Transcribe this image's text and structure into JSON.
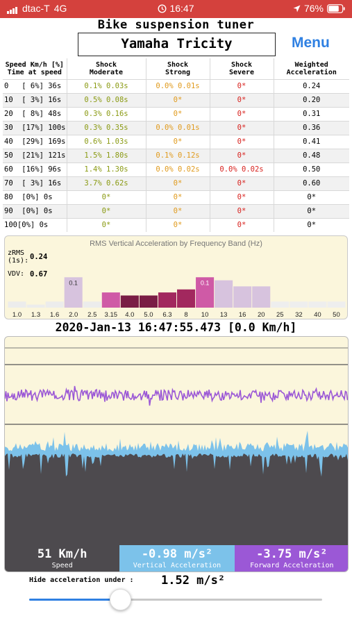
{
  "status_bar": {
    "carrier": "dtac-T",
    "network": "4G",
    "time": "16:47",
    "battery": "76%",
    "icons": [
      "signal-icon",
      "alarm-clock-icon",
      "location-arrow-icon",
      "battery-icon"
    ]
  },
  "header": {
    "title": "Bike suspension tuner",
    "model": "Yamaha Tricity",
    "menu_label": "Menu"
  },
  "table": {
    "headers": [
      {
        "line1": "Speed Km/h [%]",
        "line2": "Time at speed"
      },
      {
        "line1": "Shock",
        "line2": "Moderate"
      },
      {
        "line1": "Shock",
        "line2": "Strong"
      },
      {
        "line1": "Shock",
        "line2": "Severe"
      },
      {
        "line1": "Weighted",
        "line2": "Acceleration"
      }
    ],
    "rows": [
      {
        "speed": "0   [ 6%] 36s",
        "moderate": "0.1% 0.03s",
        "strong": "0.0% 0.01s",
        "severe": "0*",
        "weighted": "0.24"
      },
      {
        "speed": "10  [ 3%] 16s",
        "moderate": "0.5% 0.08s",
        "strong": "0*",
        "severe": "0*",
        "weighted": "0.20"
      },
      {
        "speed": "20  [ 8%] 48s",
        "moderate": "0.3% 0.16s",
        "strong": "0*",
        "severe": "0*",
        "weighted": "0.31"
      },
      {
        "speed": "30  [17%] 100s",
        "moderate": "0.3% 0.35s",
        "strong": "0.0% 0.01s",
        "severe": "0*",
        "weighted": "0.36"
      },
      {
        "speed": "40  [29%] 169s",
        "moderate": "0.6% 1.03s",
        "strong": "0*",
        "severe": "0*",
        "weighted": "0.41"
      },
      {
        "speed": "50  [21%] 121s",
        "moderate": "1.5% 1.80s",
        "strong": "0.1% 0.12s",
        "severe": "0*",
        "weighted": "0.48"
      },
      {
        "speed": "60  [16%] 96s",
        "moderate": "1.4% 1.30s",
        "strong": "0.0% 0.02s",
        "severe": "0.0% 0.02s",
        "weighted": "0.50"
      },
      {
        "speed": "70  [ 3%] 16s",
        "moderate": "3.7% 0.62s",
        "strong": "0*",
        "severe": "0*",
        "weighted": "0.60"
      },
      {
        "speed": "80  [0%] 0s",
        "moderate": "0*",
        "strong": "0*",
        "severe": "0*",
        "weighted": "0*"
      },
      {
        "speed": "90  [0%] 0s",
        "moderate": "0*",
        "strong": "0*",
        "severe": "0*",
        "weighted": "0*"
      },
      {
        "speed": "100[0%] 0s",
        "moderate": "0*",
        "strong": "0*",
        "severe": "0*",
        "weighted": "0*"
      }
    ],
    "colors": {
      "moderate": "#8a9a12",
      "strong": "#e09a1c",
      "severe": "#d8231f",
      "weighted": "#000000"
    }
  },
  "rms": {
    "title": "RMS Vertical Acceleration by Frequency Band (Hz)",
    "zrms_label": "zRMS (1s):",
    "zrms_value": "0.24",
    "vdv_label": "VDV:",
    "vdv_value": "0.67"
  },
  "chart_data": {
    "type": "bar",
    "title": "RMS Vertical Acceleration by Frequency Band (Hz)",
    "categories": [
      "1.0",
      "1.3",
      "1.6",
      "2.0",
      "2.5",
      "3.15",
      "4.0",
      "5.0",
      "6.3",
      "8",
      "10",
      "13",
      "16",
      "20",
      "25",
      "32",
      "40",
      "50"
    ],
    "values": [
      0.02,
      0.01,
      0.02,
      0.1,
      0.02,
      0.05,
      0.04,
      0.04,
      0.05,
      0.06,
      0.1,
      0.09,
      0.07,
      0.07,
      0.02,
      0.02,
      0.02,
      0.02
    ],
    "value_labels": [
      "",
      "",
      "",
      "0.1",
      "",
      "",
      "",
      "",
      "",
      "",
      "0.1",
      "",
      "",
      "",
      "",
      "",
      "",
      ""
    ],
    "colors": [
      "#ececec",
      "#ececec",
      "#ececec",
      "#d7c3de",
      "#ececec",
      "#cf5aa6",
      "#7a1d45",
      "#7a1d45",
      "#a2285e",
      "#a2285e",
      "#cf5aa6",
      "#d7c3de",
      "#d7c3de",
      "#d7c3de",
      "#eeeeee",
      "#eeeeee",
      "#eeeeee",
      "#eeeeee"
    ],
    "ylim": [
      0,
      0.16
    ],
    "grid": false
  },
  "timestamp": "2020-Jan-13 16:47:55.473 [0.0 Km/h]",
  "waveform": {
    "forward_color": "#9b58d6",
    "vertical_color": "#7cc2ea",
    "speed_color": "#4d4a4e"
  },
  "readouts": {
    "speed": {
      "value": "51 Km/h",
      "label": "Speed"
    },
    "vertical": {
      "value": "-0.98 m/s²",
      "label": "Vertical Acceleration"
    },
    "forward": {
      "value": "-3.75 m/s²",
      "label": "Forward Acceleration"
    }
  },
  "filter": {
    "label": "Hide acceleration under :",
    "value": "1.52 m/s²",
    "slider_fraction": 0.31
  }
}
